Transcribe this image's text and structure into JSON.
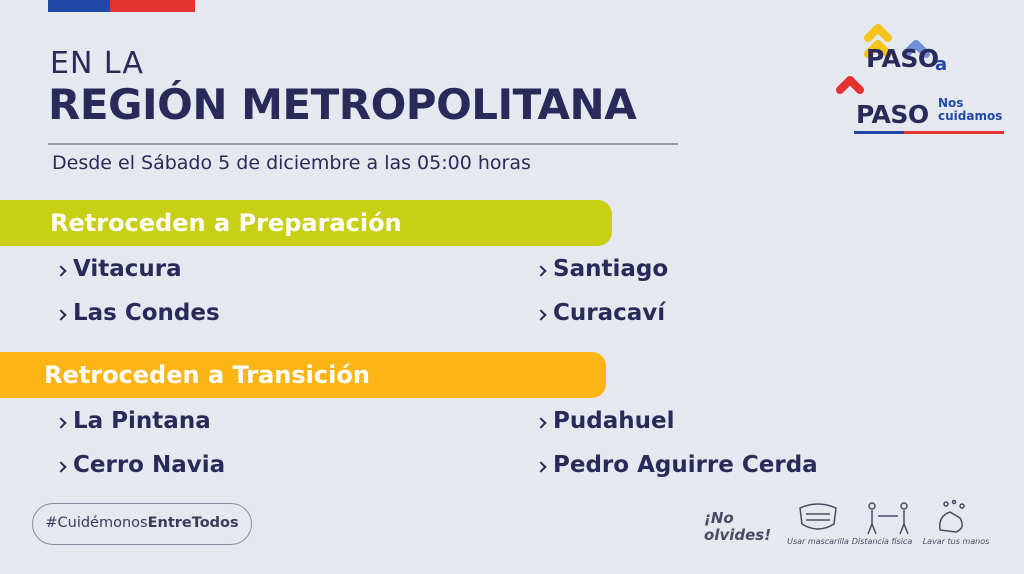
{
  "title_small": "EN LA",
  "title": "REGIÓN METROPOLITANA",
  "subtitle": "Desde el Sábado 5 de diciembre a las 05:00 horas",
  "sections": [
    {
      "title": "Retroceden a Preparación",
      "items": [
        "Vitacura",
        "Las Condes",
        "Santiago",
        "Curacaví"
      ]
    },
    {
      "title": "Retroceden a Transición",
      "items": [
        "La Pintana",
        "Cerro Navia",
        "Pudahuel",
        "Pedro Aguirre Cerda"
      ]
    }
  ],
  "hashtag": {
    "normal": "#Cuidémonos",
    "bold": "EntreTodos"
  },
  "logo": {
    "line1": "PASO",
    "a": "a",
    "line2": "PASO",
    "tag1": "Nos",
    "tag2": "cuidamos"
  },
  "reminder": {
    "line1": "¡No",
    "line2": "olvides!",
    "icons": [
      "Usar mascarilla",
      "Distancia física",
      "Lavar tus manos"
    ]
  }
}
